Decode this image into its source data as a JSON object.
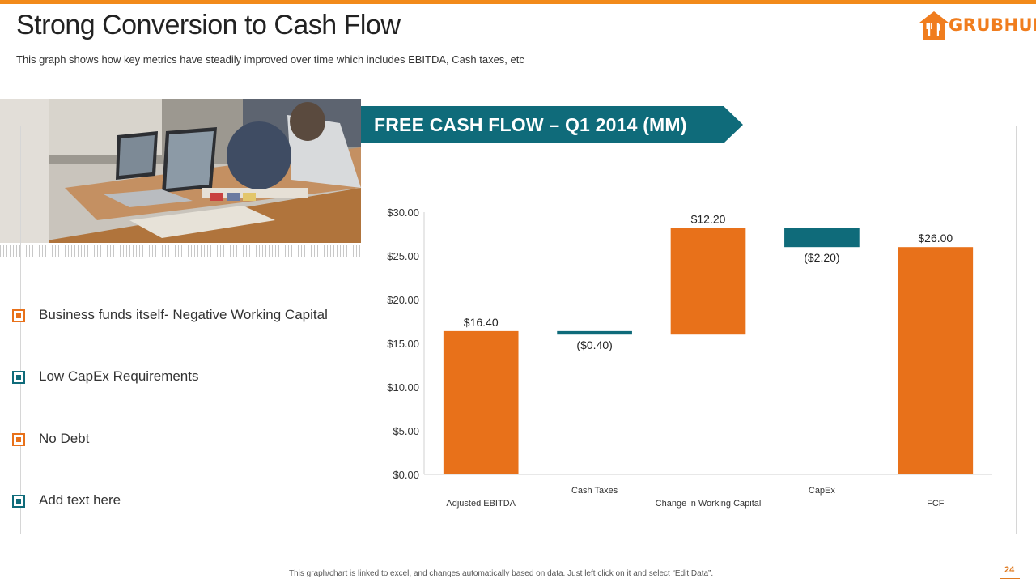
{
  "header": {
    "title": "Strong Conversion to Cash Flow",
    "subtitle": "This graph shows how key metrics have steadily improved over time which includes EBITDA, Cash taxes, etc",
    "logo_text": "GRUBHUB"
  },
  "colors": {
    "accent_orange": "#e8711a",
    "accent_teal": "#0f6b7a",
    "topbar": "#f28a1a"
  },
  "banner": {
    "text": "FREE CASH FLOW – Q1 2014 (MM)"
  },
  "bullets": [
    {
      "label": "Business funds itself- Negative Working Capital",
      "color": "orange"
    },
    {
      "label": "Low CapEx Requirements",
      "color": "teal"
    },
    {
      "label": "No Debt",
      "color": "orange"
    },
    {
      "label": "Add text here",
      "color": "teal"
    }
  ],
  "chart_data": {
    "type": "bar",
    "subtype": "waterfall",
    "title": "",
    "xlabel": "",
    "ylabel": "",
    "categories": [
      "Adjusted EBITDA",
      "Cash Taxes",
      "Change in Working Capital",
      "CapEx",
      "FCF"
    ],
    "values": [
      16.4,
      -0.4,
      12.2,
      -2.2,
      26.0
    ],
    "bar_kinds": [
      "total",
      "delta",
      "delta",
      "delta",
      "total"
    ],
    "data_labels": [
      "$16.40",
      "($0.40)",
      "$12.20",
      "($2.20)",
      "$26.00"
    ],
    "y_ticks": [
      "$0.00",
      "$5.00",
      "$10.00",
      "$15.00",
      "$20.00",
      "$25.00",
      "$30.00"
    ],
    "ylim": [
      0,
      30
    ],
    "grid": false,
    "legend": "none"
  },
  "footer": {
    "note": "This graph/chart is linked to excel, and changes automatically based on data. Just left click on it and select “Edit Data”.",
    "page_number": "24"
  }
}
